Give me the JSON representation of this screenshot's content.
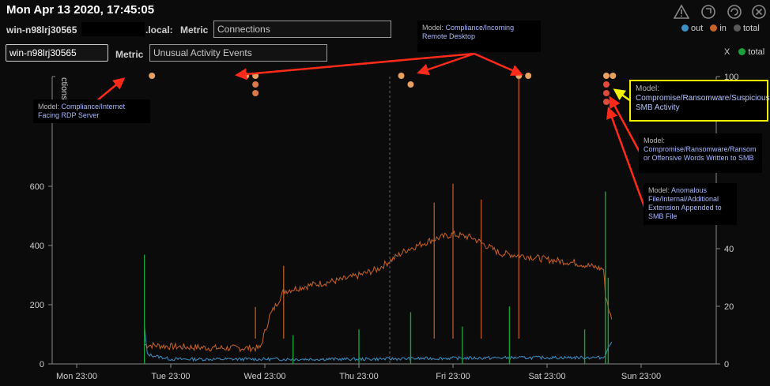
{
  "header": {
    "timestamp": "Mon Apr 13 2020, 17:45:05",
    "host_prefix": "win-n98lrj30565",
    "host_suffix": ".local:",
    "metric_label": "Metric",
    "metric_value": "Connections"
  },
  "row2": {
    "host_value": "win-n98lrj30565",
    "metric_label": "Metric",
    "metric_value": "Unusual Activity Events"
  },
  "legend": {
    "out": "out",
    "in": "in",
    "total": "total",
    "x": "X",
    "total2": "total",
    "colors": {
      "out": "#3d8fc6",
      "in": "#c8622a",
      "total": "#5a5a5a",
      "total2": "#1e9e3a"
    }
  },
  "toolbar": [
    "warning-icon",
    "refresh-icon",
    "reload-icon",
    "close-icon"
  ],
  "callouts": {
    "rdp": {
      "model": "Model:",
      "name": "Compliance/Internet Facing RDP Server"
    },
    "remote_desktop": {
      "model": "Model:",
      "name": "Compliance/Incoming Remote Desktop"
    },
    "ransom_smb": {
      "model": "Model:",
      "name": "Compromise/Ransomware/Suspicious SMB Activity"
    },
    "ransom_words": {
      "model": "Model:",
      "name": "Compromise/Ransomware/Ransom or Offensive Words Written to SMB"
    },
    "anomalous_ext": {
      "model": "Model:",
      "name": "Anomalous File/Internal/Additional Extension Appended to SMB File"
    }
  },
  "chart_data": {
    "type": "line",
    "left_axis_label": "ctions",
    "x_ticks": [
      "Mon 23:00",
      "Tue 23:00",
      "Wed 23:00",
      "Thu 23:00",
      "Fri 23:00",
      "Sat 23:00",
      "Sun 23:00"
    ],
    "left_ticks": [
      0,
      200,
      400,
      600
    ],
    "right_ticks": [
      0,
      20,
      40,
      100
    ],
    "ylim": [
      0,
      1000
    ],
    "ylim_right": [
      0,
      100
    ],
    "series": [
      {
        "name": "in",
        "color": "#c8622a",
        "x": [
          0.72,
          0.75,
          1.0,
          1.5,
          1.95,
          2.05,
          2.2,
          2.5,
          2.8,
          3.0,
          3.2,
          3.35,
          3.5,
          3.8,
          4.0,
          4.2,
          4.5,
          4.8,
          5.0,
          5.3,
          5.6,
          5.62,
          5.7
        ],
        "y": [
          60,
          60,
          55,
          50,
          50,
          150,
          230,
          250,
          265,
          280,
          300,
          330,
          360,
          395,
          410,
          400,
          350,
          340,
          330,
          320,
          300,
          220,
          120
        ]
      },
      {
        "name": "out",
        "color": "#3d8fc6",
        "x": [
          0.72,
          0.75,
          1.0,
          2.0,
          3.0,
          4.0,
          5.0,
          5.6,
          5.7
        ],
        "y": [
          120,
          30,
          15,
          15,
          15,
          18,
          20,
          20,
          80
        ]
      }
    ],
    "spikes_in": [
      {
        "x": 4.7,
        "y": 990
      },
      {
        "x": 2.2,
        "y": 310
      },
      {
        "x": 4.0,
        "y": 570
      },
      {
        "x": 4.3,
        "y": 520
      },
      {
        "x": 1.9,
        "y": 180
      },
      {
        "x": 3.8,
        "y": 510
      }
    ],
    "spikes_total": [
      {
        "x": 0.72,
        "y": 38
      },
      {
        "x": 5.62,
        "y": 60
      },
      {
        "x": 5.65,
        "y": 30
      },
      {
        "x": 3.0,
        "y": 12
      },
      {
        "x": 3.55,
        "y": 18
      },
      {
        "x": 4.1,
        "y": 13
      },
      {
        "x": 4.6,
        "y": 20
      },
      {
        "x": 5.4,
        "y": 12
      },
      {
        "x": 2.3,
        "y": 10
      }
    ],
    "model_breach_dots": [
      {
        "x": 0.8,
        "row": 0,
        "color": "#e6a060"
      },
      {
        "x": 1.8,
        "row": 0,
        "color": "#e6a060"
      },
      {
        "x": 1.9,
        "row": 0,
        "color": "#e6a060"
      },
      {
        "x": 1.9,
        "row": 1,
        "color": "#d9784a"
      },
      {
        "x": 1.9,
        "row": 2,
        "color": "#d9784a"
      },
      {
        "x": 3.45,
        "row": 0,
        "color": "#e6a060"
      },
      {
        "x": 3.55,
        "row": 1,
        "color": "#e6a060"
      },
      {
        "x": 4.7,
        "row": 0,
        "color": "#e6a060"
      },
      {
        "x": 4.8,
        "row": 0,
        "color": "#e6a060"
      },
      {
        "x": 5.63,
        "row": 0,
        "color": "#e6a060"
      },
      {
        "x": 5.7,
        "row": 0,
        "color": "#e6a060"
      },
      {
        "x": 5.63,
        "row": 1,
        "color": "#e04a3a"
      },
      {
        "x": 5.63,
        "row": 2,
        "color": "#e04a3a"
      },
      {
        "x": 5.63,
        "row": 3,
        "color": "#e04a3a"
      }
    ],
    "grid": false
  }
}
